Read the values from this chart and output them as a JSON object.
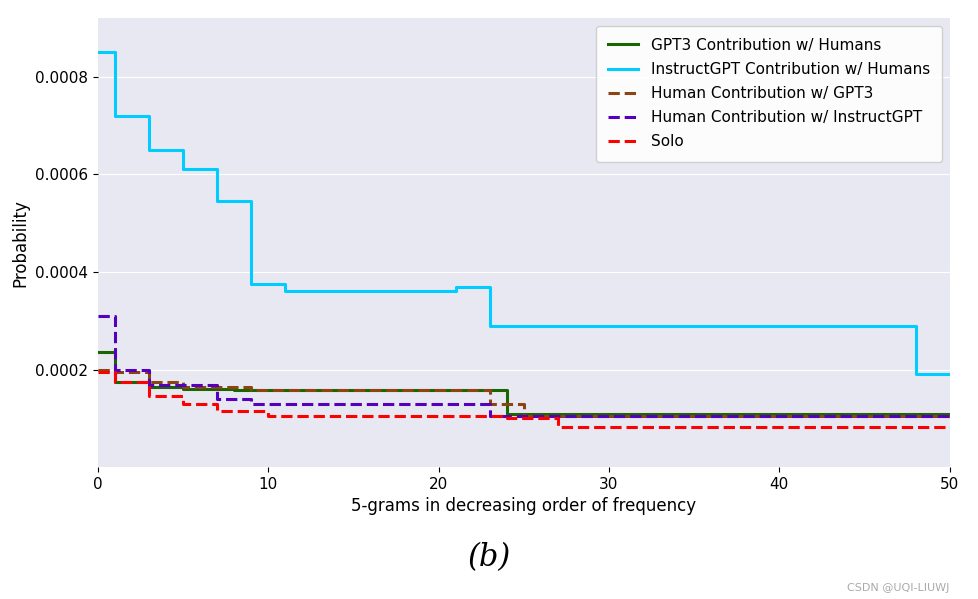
{
  "title": "(b)",
  "xlabel": "5-grams in decreasing order of frequency",
  "ylabel": "Probability",
  "xlim": [
    0,
    50
  ],
  "ylim": [
    0,
    0.00092
  ],
  "yticks": [
    0.0002,
    0.0004,
    0.0006,
    0.0008
  ],
  "ytick_labels": [
    "0.0002",
    "0.0004",
    "0.0006",
    "0.0008"
  ],
  "bg_color": "#e8e8f2",
  "fig_color": "#ffffff",
  "series": {
    "gpt3_humans": {
      "label": "GPT3 Contribution w/ Humans",
      "color": "#1a6600",
      "linestyle": "solid",
      "linewidth": 2.2,
      "x": [
        0,
        1,
        2,
        3,
        4,
        5,
        7,
        8,
        23,
        24,
        50
      ],
      "y": [
        0.000235,
        0.000175,
        0.000175,
        0.000165,
        0.000165,
        0.00016,
        0.00016,
        0.000158,
        0.000158,
        0.00011,
        0.00011
      ]
    },
    "instructgpt_humans": {
      "label": "InstructGPT Contribution w/ Humans",
      "color": "#00ccff",
      "linestyle": "solid",
      "linewidth": 2.2,
      "x": [
        0,
        1,
        2,
        3,
        4,
        5,
        6,
        7,
        8,
        9,
        10,
        11,
        20,
        21,
        22,
        23,
        24,
        47,
        48,
        50
      ],
      "y": [
        0.00085,
        0.00072,
        0.00072,
        0.00065,
        0.00065,
        0.00061,
        0.00061,
        0.000545,
        0.000545,
        0.000375,
        0.000375,
        0.00036,
        0.00036,
        0.00037,
        0.00037,
        0.00029,
        0.00029,
        0.00029,
        0.00019,
        0.00019
      ]
    },
    "human_gpt3": {
      "label": "Human Contribution w/ GPT3",
      "color": "#8B4513",
      "linestyle": "dashed",
      "linewidth": 2.2,
      "x": [
        0,
        1,
        2,
        3,
        4,
        5,
        8,
        9,
        22,
        23,
        24,
        25,
        50
      ],
      "y": [
        0.0002,
        0.000195,
        0.000195,
        0.000175,
        0.000175,
        0.000165,
        0.000165,
        0.000158,
        0.000158,
        0.00013,
        0.00013,
        0.000105,
        0.000105
      ]
    },
    "human_instructgpt": {
      "label": "Human Contribution w/ InstructGPT",
      "color": "#5500bb",
      "linestyle": "dashed",
      "linewidth": 2.2,
      "x": [
        0,
        1,
        2,
        3,
        4,
        7,
        8,
        9,
        22,
        23,
        24,
        50
      ],
      "y": [
        0.00031,
        0.0002,
        0.0002,
        0.000168,
        0.000168,
        0.00014,
        0.00014,
        0.00013,
        0.00013,
        0.000105,
        0.000105,
        0.000105
      ]
    },
    "solo": {
      "label": "Solo",
      "color": "#ff0000",
      "linestyle": "dashed",
      "linewidth": 2.2,
      "x": [
        0,
        1,
        2,
        3,
        4,
        5,
        6,
        7,
        8,
        10,
        11,
        24,
        25,
        27,
        28,
        50
      ],
      "y": [
        0.000195,
        0.000175,
        0.000175,
        0.000145,
        0.000145,
        0.00013,
        0.00013,
        0.000115,
        0.000115,
        0.000105,
        0.000105,
        0.0001,
        0.0001,
        8.2e-05,
        8.2e-05,
        8.2e-05
      ]
    }
  },
  "legend_loc": "upper right",
  "legend_fontsize": 11,
  "xlabel_fontsize": 12,
  "ylabel_fontsize": 12,
  "tick_fontsize": 11,
  "title_fontsize": 22,
  "watermark": "CSDN @UQI-LIUWJ",
  "watermark_fontsize": 8
}
